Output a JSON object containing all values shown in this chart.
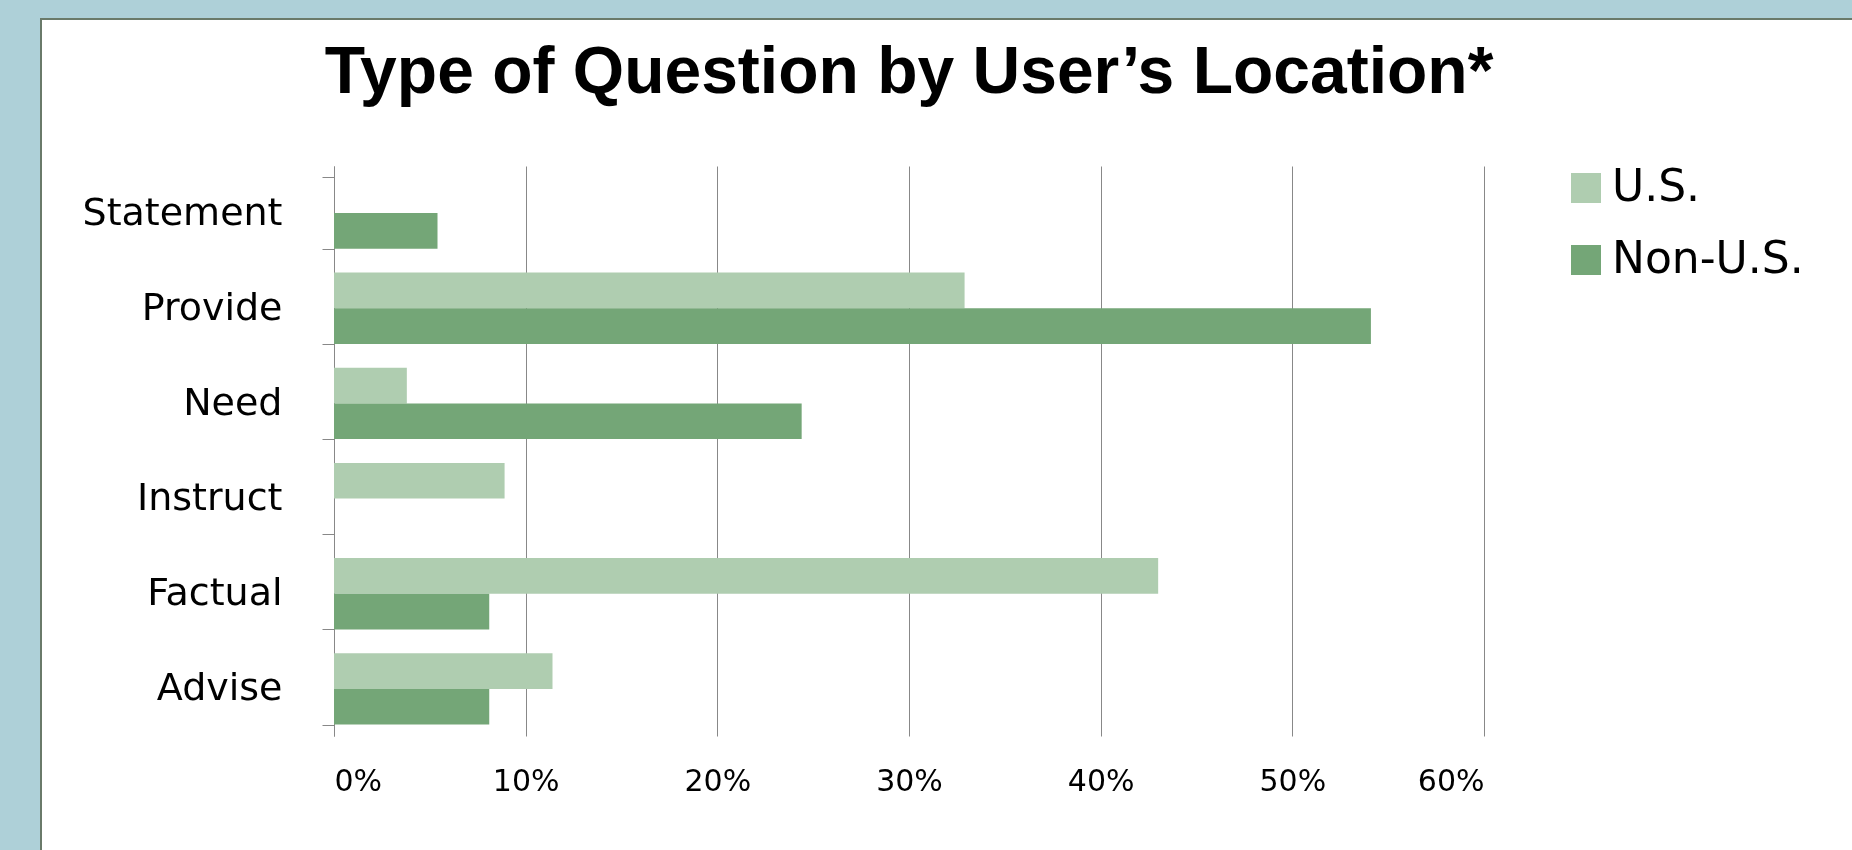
{
  "chart_data": {
    "type": "bar",
    "orientation": "horizontal",
    "title": "Type of Question by User’s Location*",
    "categories": [
      "Statement",
      "Provide",
      "Need",
      "Instruct",
      "Factual",
      "Advise"
    ],
    "series": [
      {
        "name": "U.S.",
        "color": "#afcdb0",
        "values": [
          null,
          32.9,
          3.8,
          8.9,
          43.0,
          11.4
        ]
      },
      {
        "name": "Non-U.S.",
        "color": "#74a677",
        "values": [
          5.4,
          54.1,
          24.4,
          null,
          8.1,
          8.1
        ]
      }
    ],
    "xlim": [
      0,
      60
    ],
    "xticks": [
      {
        "value": 0,
        "label": "0%"
      },
      {
        "value": 10,
        "label": "10%"
      },
      {
        "value": 20,
        "label": "20%"
      },
      {
        "value": 30,
        "label": "30%"
      },
      {
        "value": 40,
        "label": "40%"
      },
      {
        "value": 50,
        "label": "50%"
      },
      {
        "value": 60,
        "label": "60%"
      }
    ],
    "grid": "x",
    "legend": "right"
  }
}
